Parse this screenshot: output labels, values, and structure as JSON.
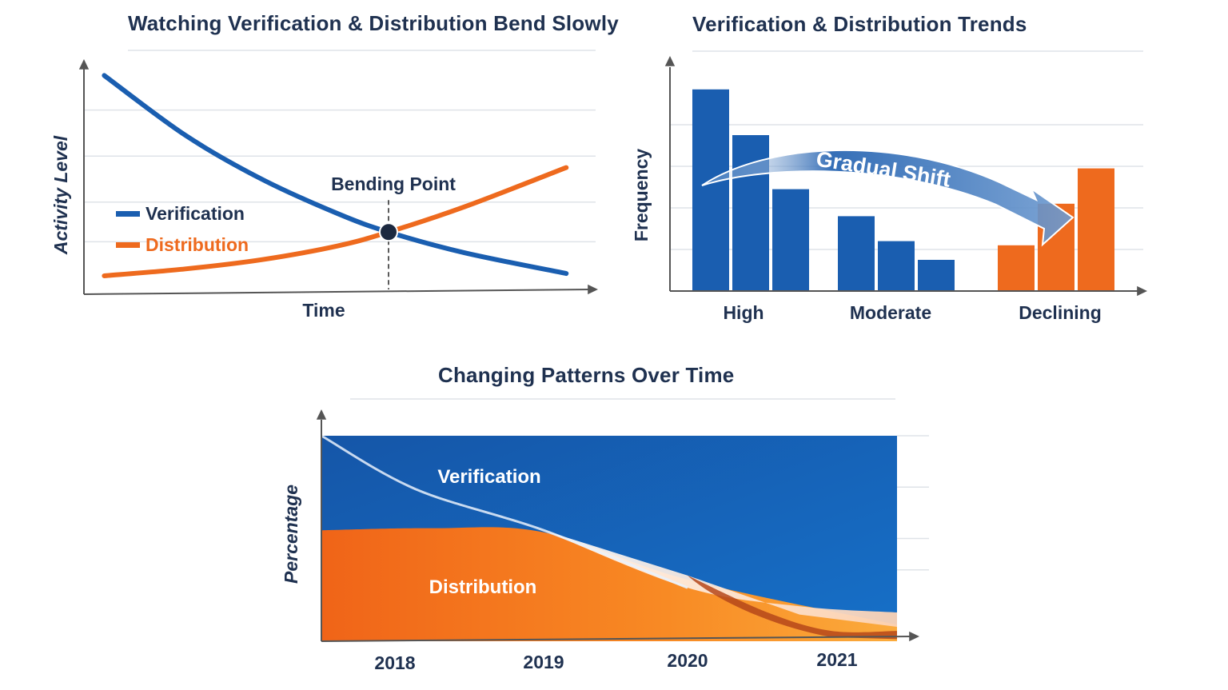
{
  "colors": {
    "blue": "#1a5eb0",
    "orange": "#ee6a1e",
    "dark_text": "#1f3150",
    "grid": "#dfe3e8",
    "axis": "#555555"
  },
  "chart_data": [
    {
      "type": "line",
      "title": "Watching Verification & Distribution Bend Slowly",
      "xlabel": "Time",
      "ylabel": "Activity Level",
      "xlim": [
        0,
        10
      ],
      "ylim": [
        0,
        10
      ],
      "grid": true,
      "legend_position": "left",
      "annotation": "Bending Point",
      "crossover": {
        "x": 6.0,
        "y": 2.7
      },
      "series": [
        {
          "name": "Verification",
          "x": [
            0.4,
            2,
            3.5,
            5,
            6,
            7.5,
            9.5
          ],
          "y": [
            9.5,
            6.9,
            5.0,
            3.5,
            2.7,
            1.8,
            0.9
          ]
        },
        {
          "name": "Distribution",
          "x": [
            0.4,
            2,
            3.5,
            5,
            6,
            7.5,
            9.5
          ],
          "y": [
            0.8,
            1.1,
            1.5,
            2.1,
            2.7,
            3.8,
            5.5
          ]
        }
      ]
    },
    {
      "type": "bar",
      "title": "Verification & Distribution Trends",
      "xlabel": "",
      "ylabel": "Frequency",
      "ylim": [
        0,
        10
      ],
      "grid": true,
      "categories": [
        "High",
        "Moderate",
        "Declining"
      ],
      "groups": [
        {
          "category": "High",
          "values": [
            9.7,
            7.5,
            4.9
          ],
          "series": "Verification"
        },
        {
          "category": "Moderate",
          "values": [
            3.6,
            2.4,
            1.5
          ],
          "series": "Verification"
        },
        {
          "category": "Declining",
          "values": [
            2.2,
            4.2,
            5.9
          ],
          "series": "Distribution"
        }
      ],
      "annotation": "Gradual Shift"
    },
    {
      "type": "area",
      "title": "Changing Patterns Over Time",
      "xlabel": "",
      "ylabel": "Percentage",
      "x": [
        "2018",
        "2019",
        "2020",
        "2021"
      ],
      "ylim": [
        0,
        100
      ],
      "series": [
        {
          "name": "Verification",
          "values": [
            100,
            100,
            100,
            100
          ]
        },
        {
          "name": "Distribution",
          "values": [
            54,
            53,
            30,
            8
          ]
        }
      ]
    }
  ]
}
